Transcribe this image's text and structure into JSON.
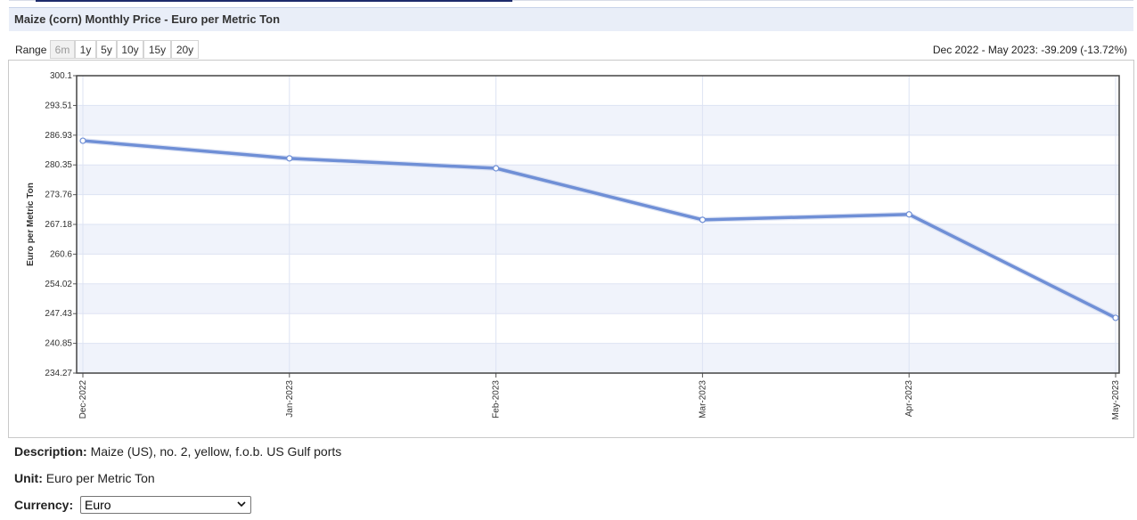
{
  "page": {
    "title": "Maize (corn) Monthly Price - Euro per Metric Ton"
  },
  "range": {
    "label": "Range",
    "buttons": [
      "6m",
      "1y",
      "5y",
      "10y",
      "15y",
      "20y"
    ],
    "active": "6m"
  },
  "change_summary": "Dec 2022 - May 2023: -39.209 (-13.72%)",
  "info": {
    "description_label": "Description:",
    "description_value": "Maize (US), no. 2, yellow, f.o.b. US Gulf ports",
    "unit_label": "Unit:",
    "unit_value": "Euro per Metric Ton",
    "currency_label": "Currency:",
    "currency_value": "Euro"
  },
  "colors": {
    "line": "#6f8fd6",
    "band": "#f0f3fb",
    "grid": "#dde3f3",
    "title_bg": "#e9eef8"
  },
  "chart_data": {
    "type": "line",
    "title": "",
    "xlabel": "",
    "ylabel": "Euro per Metric Ton",
    "categories": [
      "Dec-2022",
      "Jan-2023",
      "Feb-2023",
      "Mar-2023",
      "Apr-2023",
      "May-2023"
    ],
    "series": [
      {
        "values": [
          285.7,
          281.8,
          279.6,
          268.2,
          269.4,
          246.5
        ]
      }
    ],
    "yticks": [
      "234.27",
      "240.85",
      "247.43",
      "254.02",
      "260.6",
      "267.18",
      "273.76",
      "280.35",
      "286.93",
      "293.51",
      "300.1"
    ],
    "ylim": [
      234.27,
      300.1
    ],
    "grid": true,
    "legend": "none"
  }
}
